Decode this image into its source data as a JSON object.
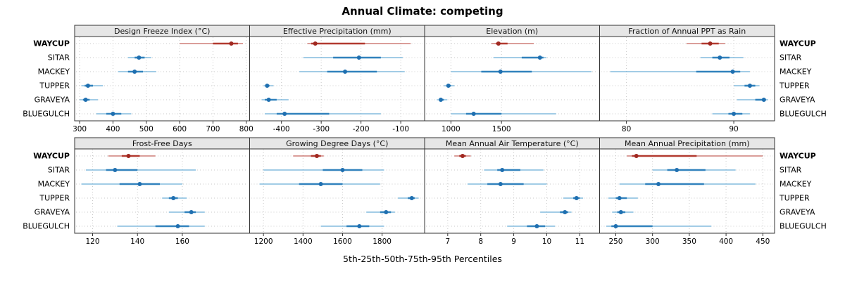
{
  "chart_data": {
    "type": "dotplot-percentiles",
    "title": "Annual Climate: competing",
    "caption": "5th-25th-50th-75th-95th Percentiles",
    "percentiles": [
      "5th",
      "25th",
      "50th",
      "75th",
      "95th"
    ],
    "sites": [
      "WAYCUP",
      "SITAR",
      "MACKEY",
      "TUPPER",
      "GRAVEYA",
      "BLUEGULCH"
    ],
    "highlight_site": "WAYCUP",
    "legend_position": "none",
    "grid": "dotted",
    "colors": {
      "strip_bg": "#e6e6e6",
      "border": "#333333",
      "grid": "#c9c9c9",
      "highlight_line": "#c4645c",
      "highlight_mid": "#b23a30",
      "highlight_dot": "#a02820",
      "normal_line": "#6baed6",
      "normal_mid": "#3182bd",
      "normal_dot": "#1f6fb0"
    },
    "panels": [
      {
        "title": "Design Freeze Index (°C)",
        "xlim": [
          285,
          810
        ],
        "ticks": [
          300,
          400,
          500,
          600,
          700,
          800
        ],
        "values": {
          "WAYCUP": [
            600,
            700,
            755,
            775,
            790
          ],
          "SITAR": [
            445,
            465,
            478,
            495,
            515
          ],
          "MACKEY": [
            415,
            445,
            465,
            490,
            530
          ],
          "TUPPER": [
            305,
            315,
            325,
            340,
            370
          ],
          "GRAVEYA": [
            300,
            310,
            318,
            330,
            355
          ],
          "BLUEGULCH": [
            350,
            380,
            400,
            425,
            455
          ]
        }
      },
      {
        "title": "Effective Precipitation (mm)",
        "xlim": [
          -480,
          -40
        ],
        "ticks": [
          -400,
          -300,
          -200,
          -100
        ],
        "values": {
          "WAYCUP": [
            -335,
            -325,
            -315,
            -190,
            -75
          ],
          "SITAR": [
            -345,
            -270,
            -205,
            -150,
            -95
          ],
          "MACKEY": [
            -355,
            -285,
            -240,
            -160,
            -90
          ],
          "TUPPER": [
            -445,
            -440,
            -436,
            -430,
            -420
          ],
          "GRAVEYA": [
            -450,
            -442,
            -432,
            -412,
            -382
          ],
          "BLUEGULCH": [
            -442,
            -412,
            -392,
            -280,
            -150
          ]
        }
      },
      {
        "title": "Elevation (m)",
        "xlim": [
          740,
          2470
        ],
        "ticks": [
          1000,
          1500
        ],
        "values": {
          "WAYCUP": [
            1400,
            1445,
            1470,
            1560,
            1820
          ],
          "SITAR": [
            1420,
            1700,
            1880,
            1915,
            1945
          ],
          "MACKEY": [
            1000,
            1300,
            1490,
            1800,
            2390
          ],
          "TUPPER": [
            930,
            955,
            975,
            1000,
            1035
          ],
          "GRAVEYA": [
            860,
            885,
            900,
            930,
            965
          ],
          "BLUEGULCH": [
            1000,
            1150,
            1225,
            1500,
            2040
          ]
        }
      },
      {
        "title": "Fraction of Annual PPT as Rain",
        "xlim": [
          77.5,
          93.8
        ],
        "ticks": [
          80,
          90
        ],
        "values": {
          "WAYCUP": [
            85.6,
            87.0,
            87.8,
            88.6,
            89.2
          ],
          "SITAR": [
            86.9,
            88.0,
            88.7,
            89.6,
            90.9
          ],
          "MACKEY": [
            78.5,
            86.5,
            89.9,
            90.6,
            91.5
          ],
          "TUPPER": [
            90.0,
            91.0,
            91.5,
            92.0,
            92.4
          ],
          "GRAVEYA": [
            90.3,
            92.0,
            92.8,
            93.0,
            93.2
          ],
          "BLUEGULCH": [
            88.0,
            89.5,
            90.0,
            90.8,
            91.5
          ]
        }
      },
      {
        "title": "Frost-Free Days",
        "xlim": [
          112,
          190
        ],
        "ticks": [
          120,
          140,
          160
        ],
        "values": {
          "WAYCUP": [
            127,
            133,
            136,
            141,
            148
          ],
          "SITAR": [
            117,
            126,
            130,
            140,
            166
          ],
          "MACKEY": [
            115,
            132,
            141,
            150,
            160
          ],
          "TUPPER": [
            151,
            154,
            156,
            158,
            162
          ],
          "GRAVEYA": [
            154,
            161,
            164,
            166,
            170
          ],
          "BLUEGULCH": [
            131,
            148,
            158,
            163,
            170
          ]
        }
      },
      {
        "title": "Growing Degree Days (°C)",
        "xlim": [
          1130,
          2015
        ],
        "ticks": [
          1200,
          1400,
          1600,
          1800
        ],
        "values": {
          "WAYCUP": [
            1350,
            1440,
            1470,
            1490,
            1505
          ],
          "SITAR": [
            1200,
            1500,
            1600,
            1700,
            1810
          ],
          "MACKEY": [
            1180,
            1380,
            1490,
            1600,
            1790
          ],
          "TUPPER": [
            1880,
            1930,
            1950,
            1965,
            1985
          ],
          "GRAVEYA": [
            1720,
            1790,
            1820,
            1845,
            1865
          ],
          "BLUEGULCH": [
            1490,
            1620,
            1685,
            1735,
            1810
          ]
        }
      },
      {
        "title": "Mean Annual Air Temperature (°C)",
        "xlim": [
          6.3,
          11.6
        ],
        "ticks": [
          7,
          8,
          9,
          10,
          11
        ],
        "values": {
          "WAYCUP": [
            7.2,
            7.35,
            7.45,
            7.55,
            7.7
          ],
          "SITAR": [
            8.1,
            8.5,
            8.65,
            9.2,
            9.9
          ],
          "MACKEY": [
            7.6,
            8.2,
            8.6,
            9.3,
            10.0
          ],
          "TUPPER": [
            10.5,
            10.8,
            10.9,
            11.0,
            11.1
          ],
          "GRAVEYA": [
            9.8,
            10.4,
            10.55,
            10.65,
            10.75
          ],
          "BLUEGULCH": [
            8.8,
            9.4,
            9.7,
            9.95,
            10.25
          ]
        }
      },
      {
        "title": "Mean Annual Precipitation (mm)",
        "xlim": [
          228,
          466
        ],
        "ticks": [
          250,
          300,
          350,
          400,
          450
        ],
        "values": {
          "WAYCUP": [
            265,
            272,
            278,
            360,
            450
          ],
          "SITAR": [
            300,
            320,
            333,
            372,
            413
          ],
          "MACKEY": [
            255,
            290,
            308,
            370,
            440
          ],
          "TUPPER": [
            240,
            250,
            255,
            265,
            280
          ],
          "GRAVEYA": [
            245,
            252,
            257,
            263,
            274
          ],
          "BLUEGULCH": [
            237,
            244,
            250,
            300,
            380
          ]
        }
      }
    ]
  }
}
